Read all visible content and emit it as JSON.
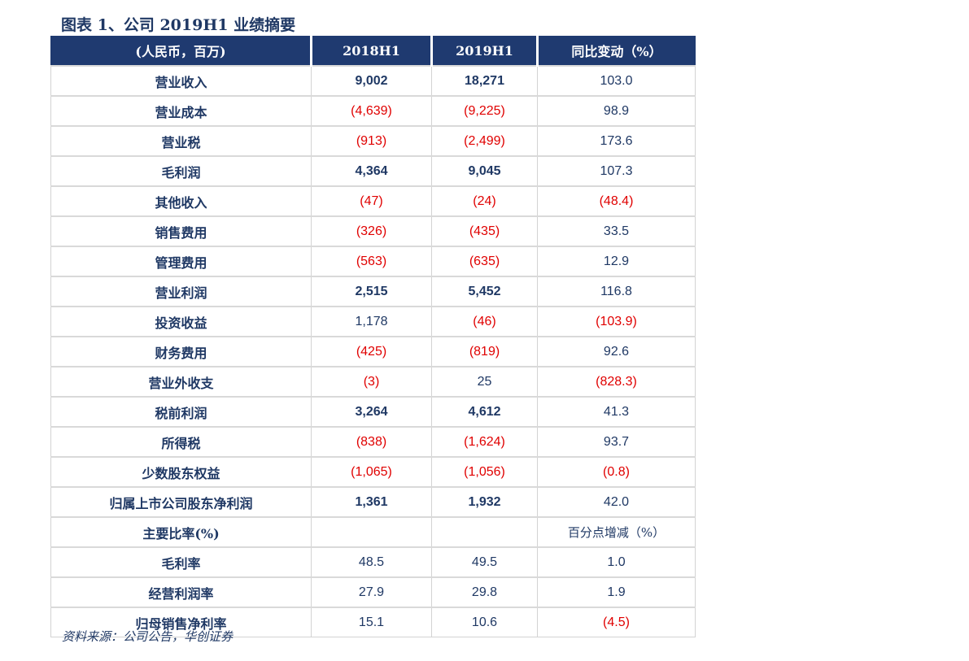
{
  "title": "图表 1、公司 2019H1 业绩摘要",
  "header": [
    "(人民币，百万)",
    "2018H1",
    "2019H1",
    "同比变动（%）"
  ],
  "rows": [
    {
      "label": "营业收入",
      "bold": true,
      "cells": [
        "9,002",
        "18,271",
        "103.0"
      ]
    },
    {
      "label": "营业成本",
      "bold": false,
      "cells": [
        "(4,639)",
        "(9,225)",
        "98.9"
      ]
    },
    {
      "label": "营业税",
      "bold": false,
      "cells": [
        "(913)",
        "(2,499)",
        "173.6"
      ]
    },
    {
      "label": "毛利润",
      "bold": true,
      "cells": [
        "4,364",
        "9,045",
        "107.3"
      ]
    },
    {
      "label": "其他收入",
      "bold": false,
      "cells": [
        "(47)",
        "(24)",
        "(48.4)"
      ]
    },
    {
      "label": "销售费用",
      "bold": false,
      "cells": [
        "(326)",
        "(435)",
        "33.5"
      ]
    },
    {
      "label": "管理费用",
      "bold": false,
      "cells": [
        "(563)",
        "(635)",
        "12.9"
      ]
    },
    {
      "label": "营业利润",
      "bold": true,
      "cells": [
        "2,515",
        "5,452",
        "116.8"
      ]
    },
    {
      "label": "投资收益",
      "bold": false,
      "cells": [
        "1,178",
        "(46)",
        "(103.9)"
      ]
    },
    {
      "label": "财务费用",
      "bold": false,
      "cells": [
        "(425)",
        "(819)",
        "92.6"
      ]
    },
    {
      "label": "营业外收支",
      "bold": false,
      "cells": [
        "(3)",
        "25",
        "(828.3)"
      ]
    },
    {
      "label": "税前利润",
      "bold": true,
      "cells": [
        "3,264",
        "4,612",
        "41.3"
      ]
    },
    {
      "label": "所得税",
      "bold": false,
      "cells": [
        "(838)",
        "(1,624)",
        "93.7"
      ]
    },
    {
      "label": "少数股东权益",
      "bold": false,
      "cells": [
        "(1,065)",
        "(1,056)",
        "(0.8)"
      ]
    },
    {
      "label": "归属上市公司股东净利润",
      "bold": true,
      "cells": [
        "1,361",
        "1,932",
        "42.0"
      ]
    },
    {
      "label": "主要比率(%)",
      "bold": false,
      "cells": [
        "",
        "",
        "百分点增减（%）"
      ]
    },
    {
      "label": "毛利率",
      "bold": false,
      "cells": [
        "48.5",
        "49.5",
        "1.0"
      ]
    },
    {
      "label": "经营利润率",
      "bold": false,
      "cells": [
        "27.9",
        "29.8",
        "1.9"
      ]
    },
    {
      "label": "归母销售净利率",
      "bold": false,
      "cells": [
        "15.1",
        "10.6",
        "(4.5)"
      ]
    }
  ],
  "source": "资料来源：公司公告，华创证券",
  "colors": {
    "header_bg": "#1f3a70",
    "text": "#1f3864",
    "negative": "#e00000"
  }
}
